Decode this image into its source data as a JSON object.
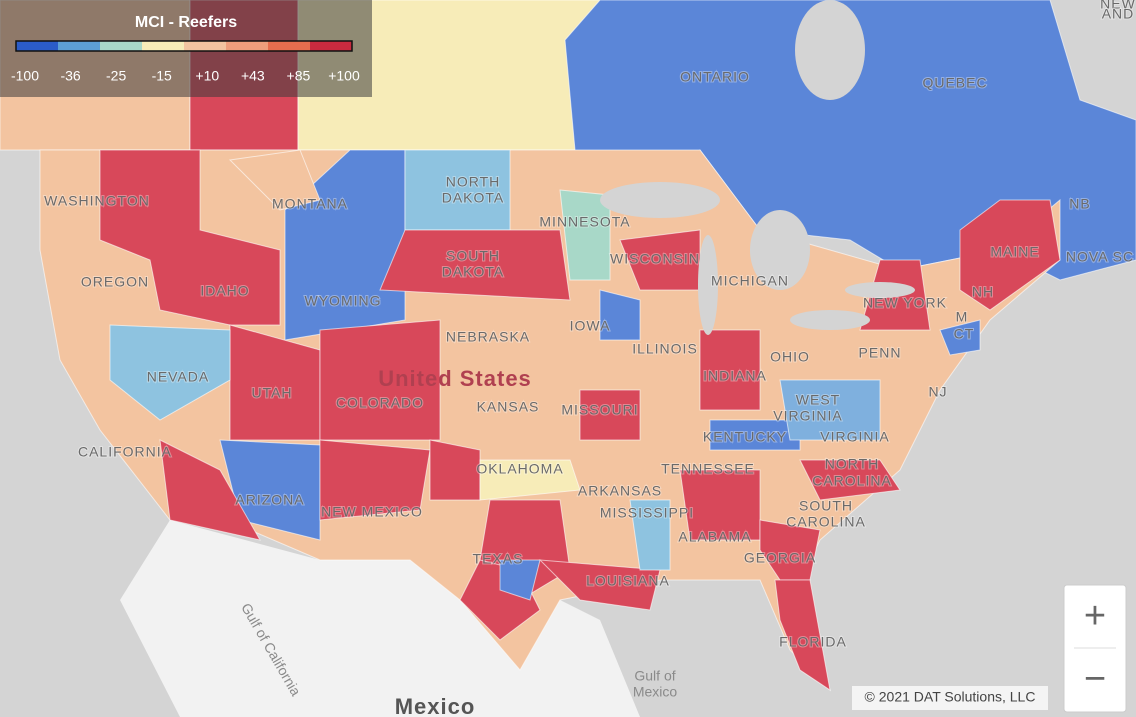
{
  "legend": {
    "title": "MCI - Reefers",
    "colors": [
      "#2b5cc8",
      "#5d9fd4",
      "#a8d8c8",
      "#f7ecb8",
      "#f3c4a0",
      "#ee9e7c",
      "#e56d4e",
      "#c92a3f"
    ],
    "labels": [
      "-100",
      "-36",
      "-25",
      "-15",
      "+10",
      "+43",
      "+85",
      "+100"
    ]
  },
  "labels": {
    "countries": [
      "United States",
      "Mexico"
    ],
    "provinces": [
      "ONTARIO",
      "QUEBEC",
      "NB",
      "NOVA SC",
      [
        "NEW",
        "AND"
      ]
    ],
    "states": [
      "WASHINGTON",
      "MONTANA",
      [
        "NORTH",
        "DAKOTA"
      ],
      "MINNESOTA",
      "OREGON",
      "IDAHO",
      "WYOMING",
      [
        "SOUTH",
        "DAKOTA"
      ],
      "WISCONSIN",
      "MICHIGAN",
      "NEW YORK",
      "MAINE",
      "NH",
      "M",
      "CT",
      "NEVADA",
      "NEBRASKA",
      "IOWA",
      "ILLINOIS",
      "INDIANA",
      "OHIO",
      "PENN",
      "NJ",
      "UTAH",
      "COLORADO",
      "KANSAS",
      "MISSOURI",
      [
        "WEST",
        "VIRGINIA"
      ],
      "KENTUCKY",
      "VIRGINIA",
      "CALIFORNIA",
      "ARIZONA",
      "NEW MEXICO",
      "OKLAHOMA",
      "TENNESSEE",
      "ARKANSAS",
      [
        "NORTH",
        "CAROLINA"
      ],
      [
        "SOUTH",
        "CAROLINA"
      ],
      "MISSISSIPPI",
      "ALABAMA",
      "GEORGIA",
      "TEXAS",
      "LOUISIANA",
      "FLORIDA"
    ],
    "water": [
      "Gulf of California",
      [
        "Gulf of",
        "Mexico"
      ]
    ]
  },
  "attribution": "© 2021 DAT Solutions, LLC",
  "zoom": {
    "in": "+",
    "out": "−"
  }
}
